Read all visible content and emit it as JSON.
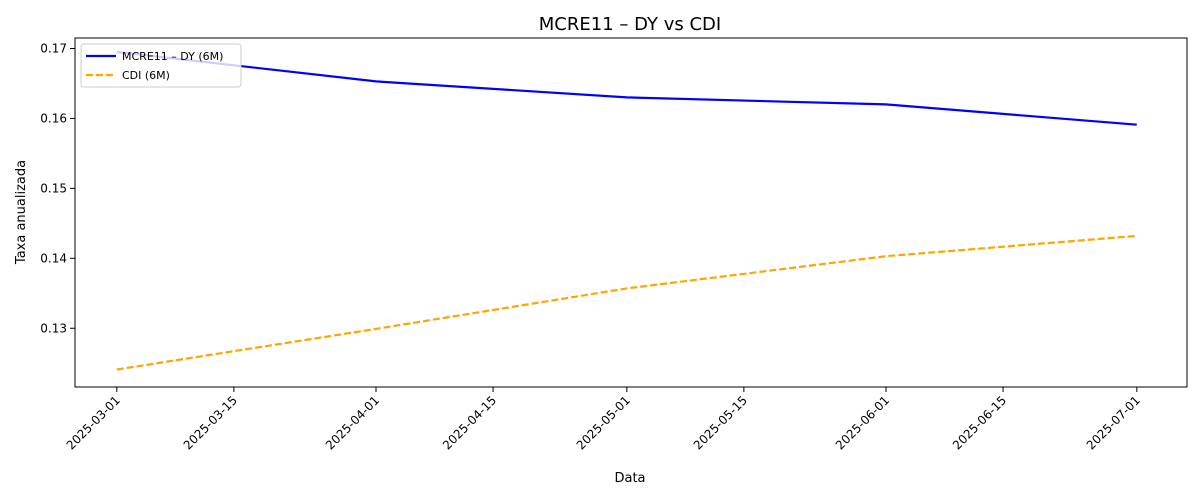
{
  "chart_data": {
    "type": "line",
    "title": "MCRE11 – DY vs CDI",
    "xlabel": "Data",
    "ylabel": "Taxa anualizada",
    "x_axis": "date",
    "xlim": [
      "2025-02-24",
      "2025-07-07"
    ],
    "ylim": [
      0.1216,
      0.1715
    ],
    "x_ticks": [
      "2025-03-01",
      "2025-03-15",
      "2025-04-01",
      "2025-04-15",
      "2025-05-01",
      "2025-05-15",
      "2025-06-01",
      "2025-06-15",
      "2025-07-01"
    ],
    "y_ticks": [
      0.13,
      0.14,
      0.15,
      0.16,
      0.17
    ],
    "y_tick_labels": [
      "0.13",
      "0.14",
      "0.15",
      "0.16",
      "0.17"
    ],
    "grid": false,
    "legend_position": "top-left",
    "series": [
      {
        "name": "MCRE11 – DY (6M)",
        "color": "#0000ff",
        "style": "solid",
        "x": [
          "2025-03-01",
          "2025-04-01",
          "2025-05-01",
          "2025-06-01",
          "2025-07-01"
        ],
        "y": [
          0.1695,
          0.1653,
          0.163,
          0.162,
          0.1591
        ]
      },
      {
        "name": "CDI (6M)",
        "color": "#ffa500",
        "style": "dashed",
        "x": [
          "2025-03-01",
          "2025-04-01",
          "2025-05-01",
          "2025-06-01",
          "2025-07-01"
        ],
        "y": [
          0.1241,
          0.1299,
          0.1357,
          0.1403,
          0.1432
        ]
      }
    ]
  }
}
